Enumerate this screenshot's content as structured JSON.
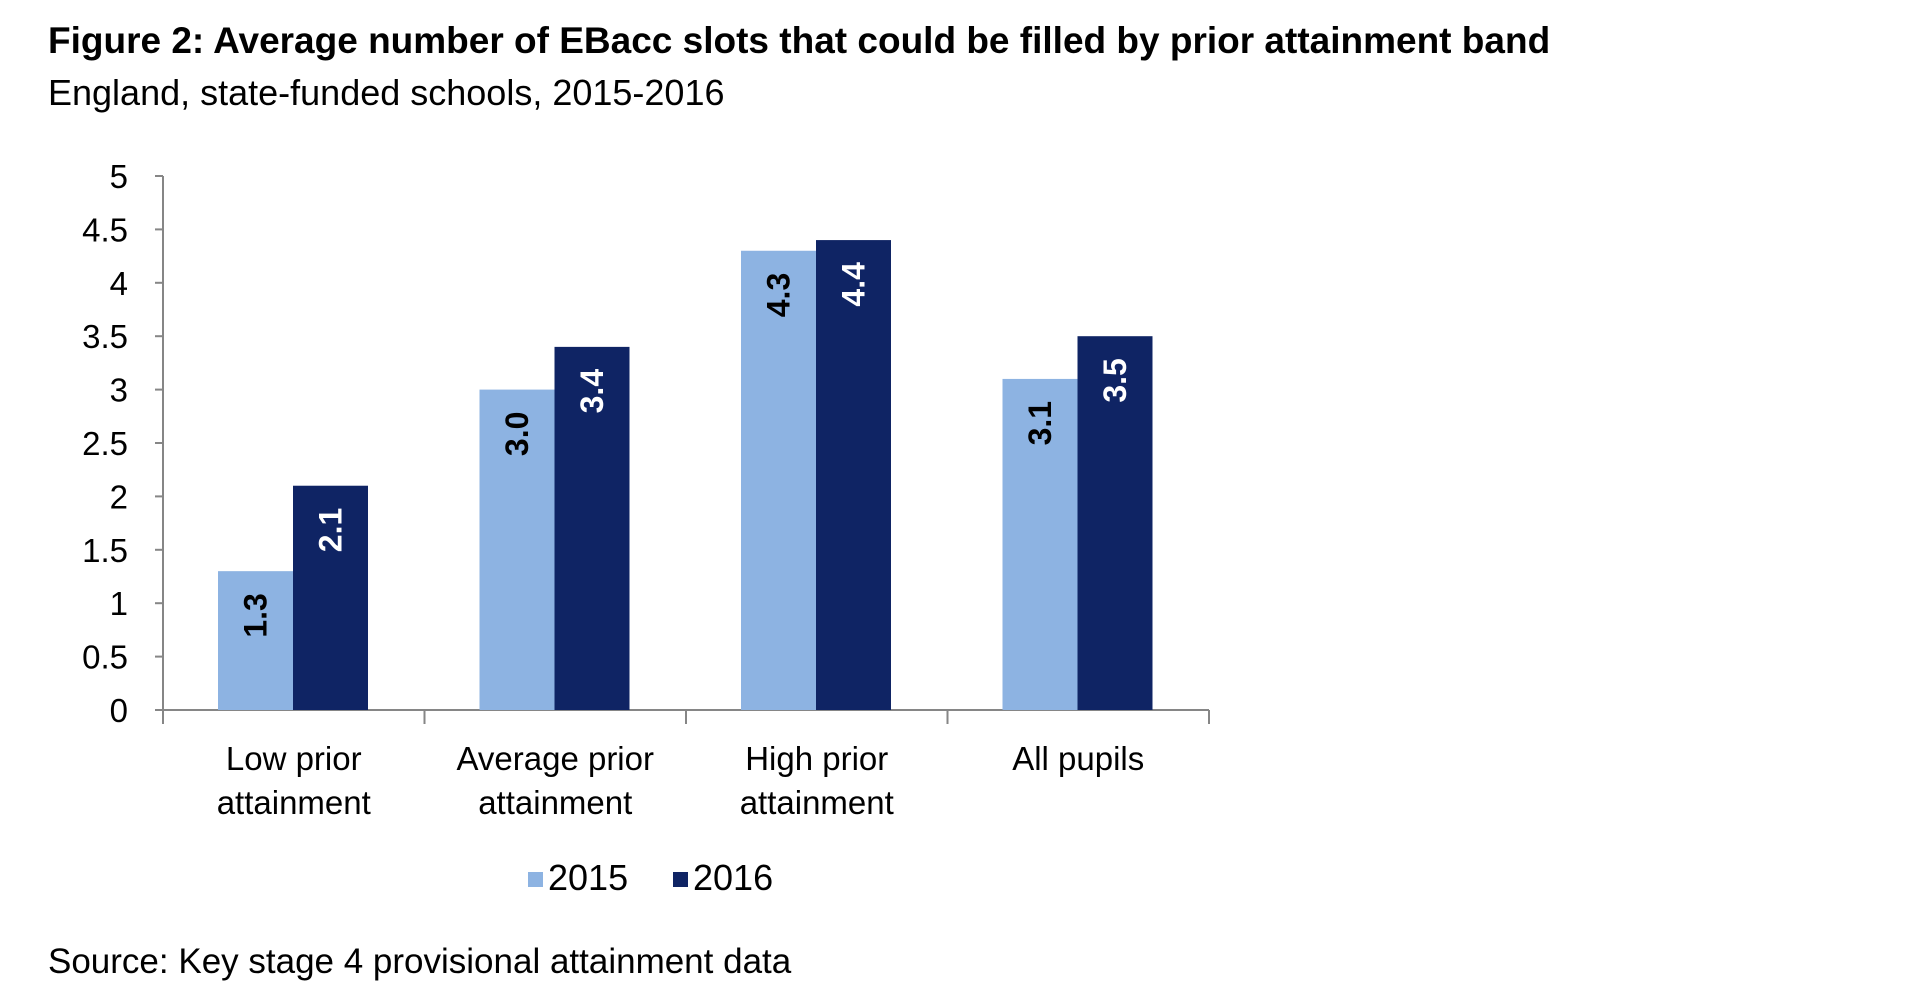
{
  "chart_data": {
    "type": "bar",
    "title": "Figure 2: Average number of EBacc slots that could be filled by prior attainment band",
    "subtitle": "England, state-funded schools, 2015-2016",
    "source": "Source: Key stage 4 provisional attainment data",
    "categories": [
      [
        "Low prior",
        "attainment"
      ],
      [
        "Average prior",
        "attainment"
      ],
      [
        "High prior",
        "attainment"
      ],
      [
        "All pupils"
      ]
    ],
    "series": [
      {
        "name": "2015",
        "values": [
          1.3,
          3.0,
          4.3,
          3.1
        ],
        "labels": [
          "1.3",
          "3.0",
          "4.3",
          "3.1"
        ],
        "color": "#8db3e2",
        "label_color": "#000000"
      },
      {
        "name": "2016",
        "values": [
          2.1,
          3.4,
          4.4,
          3.5
        ],
        "labels": [
          "2.1",
          "3.4",
          "4.4",
          "3.5"
        ],
        "color": "#0f2464",
        "label_color": "#ffffff"
      }
    ],
    "yticks": [
      "0",
      "0.5",
      "1",
      "1.5",
      "2",
      "2.5",
      "3",
      "3.5",
      "4",
      "4.5",
      "5"
    ],
    "ylim": [
      0,
      5
    ],
    "xlabel": "",
    "ylabel": "",
    "grid": false,
    "legend_position": "bottom"
  }
}
